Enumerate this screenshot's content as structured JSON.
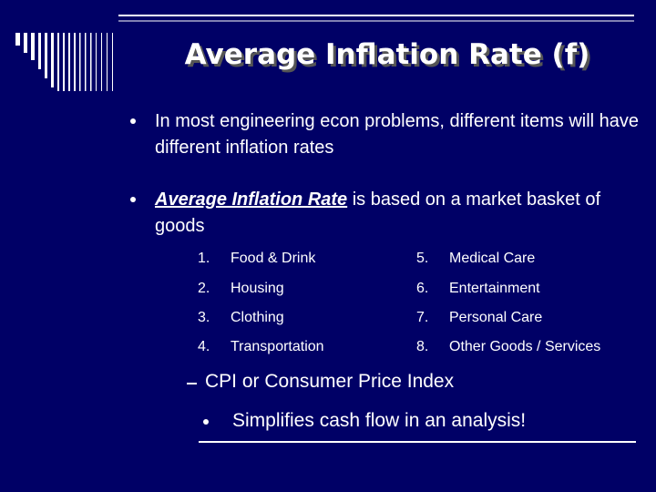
{
  "title": "Average Inflation Rate (f)",
  "bullets": [
    {
      "text": "In most engineering econ problems, different items will have different inflation rates"
    },
    {
      "emphasis": "Average Inflation Rate",
      "text": " is based on a market basket of goods"
    }
  ],
  "items": [
    {
      "number": "1.",
      "label": "Food & Drink"
    },
    {
      "number": "2.",
      "label": "Housing"
    },
    {
      "number": "3.",
      "label": "Clothing"
    },
    {
      "number": "4.",
      "label": "Transportation"
    },
    {
      "number": "5.",
      "label": "Medical Care"
    },
    {
      "number": "6.",
      "label": "Entertainment"
    },
    {
      "number": "7.",
      "label": "Personal Care"
    },
    {
      "number": "8.",
      "label": "Other Goods / Services"
    }
  ],
  "sub_point": "CPI or Consumer Price Index",
  "sub_sub_point": "Simplifies cash flow in an analysis!"
}
